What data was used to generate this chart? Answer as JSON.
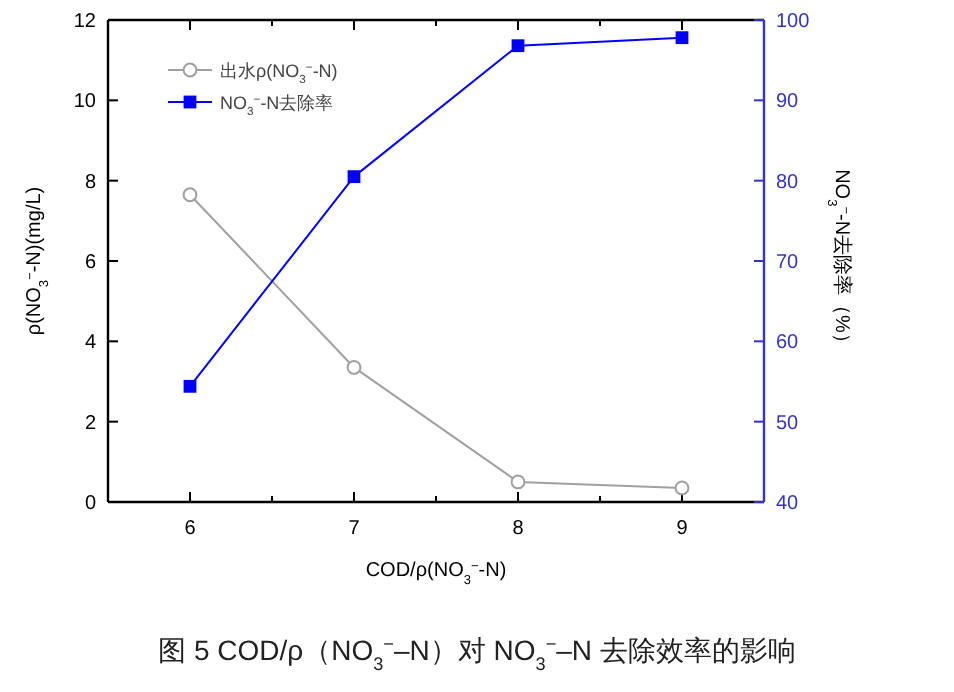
{
  "chart_data": {
    "type": "line",
    "xlabel": "COD/ρ(NO$_{3}$$^{−}$-N)",
    "ylabel": "ρ(NO$_{3}$$^{−}$-N)(mg/L)",
    "y2label": "NO$_{3}$$^{−}$-N去除率（%）",
    "x": [
      6,
      7,
      8,
      9
    ],
    "xlim": [
      5.5,
      9.5
    ],
    "xticks": [
      6,
      7,
      8,
      9
    ],
    "ylim": [
      0,
      12
    ],
    "yticks": [
      0,
      2,
      4,
      6,
      8,
      10,
      12
    ],
    "y2lim": [
      40,
      100
    ],
    "y2ticks": [
      40,
      50,
      60,
      70,
      80,
      90,
      100
    ],
    "series": [
      {
        "name": "出水ρ(NO$_{3}$$^{−}$-N)",
        "color": "#a0a0a0",
        "marker": "circle",
        "values": [
          7.65,
          3.35,
          0.5,
          0.35
        ]
      },
      {
        "name": "NO$_{3}$$^{−}$-N去除率",
        "color": "#0000ff",
        "marker": "square",
        "axis": "y2",
        "values": [
          54.4,
          80.5,
          96.8,
          97.8
        ]
      }
    ],
    "legend": "top left",
    "grid": false,
    "annotations": [
      "图 5   COD/ρ（NO$_{3}$$^{−}$–N）对 NO$_{3}$$^{−}$–N 去除效率的影响"
    ]
  }
}
